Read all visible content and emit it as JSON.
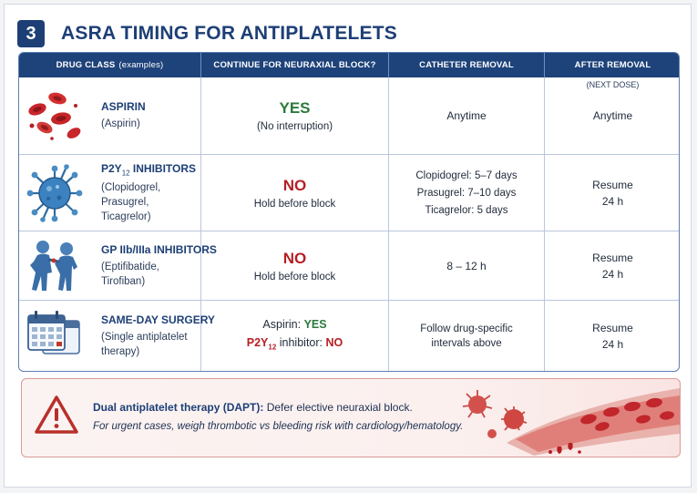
{
  "header": {
    "number": "3",
    "title": "ASRA TIMING FOR ANTIPLATELETS"
  },
  "table": {
    "columns": {
      "drug_class": "DRUG CLASS",
      "drug_class_note": "(examples)",
      "continue": "CONTINUE FOR NEURAXIAL BLOCK?",
      "catheter": "CATHETER REMOVAL",
      "after": "AFTER REMOVAL",
      "after_note": "(NEXT DOSE)"
    },
    "rows": [
      {
        "icon": "blood-cells-icon",
        "name": "ASPIRIN",
        "examples": "(Aspirin)",
        "verdict": "YES",
        "verdict_note": "(No interruption)",
        "catheter": "Anytime",
        "after": "Anytime"
      },
      {
        "icon": "platelet-icon",
        "name_prefix": "P2Y",
        "name_sub": "12",
        "name_suffix": " INHIBITORS",
        "examples": "(Clopidogrel,\nPrasugrel,\nTicagrelor)",
        "verdict": "NO",
        "verdict_note": "Hold before block",
        "catheter_lines": [
          "Clopidogrel:  5–7 days",
          "Prasugrel:  7–10 days",
          "Ticagrelor:  5 days"
        ],
        "after_l1": "Resume",
        "after_l2": "24 h"
      },
      {
        "icon": "figures-icon",
        "name": "GP IIb/IIIa INHIBITORS",
        "examples": "(Eptifibatide,\nTirofiban)",
        "verdict": "NO",
        "verdict_note": "Hold before block",
        "catheter": "8 – 12 h",
        "after_l1": "Resume",
        "after_l2": "24 h"
      },
      {
        "icon": "calendar-icon",
        "name": "SAME-DAY SURGERY",
        "examples": "(Single antiplatelet\ntherapy)",
        "line1_label": "Aspirin:",
        "line1_value": "YES",
        "line2_prefix": "P2Y",
        "line2_sub": "12",
        "line2_label": " inhibitor:",
        "line2_value": "NO",
        "catheter_l1": "Follow drug-specific",
        "catheter_l2": "intervals above",
        "after_l1": "Resume",
        "after_l2": "24 h"
      }
    ]
  },
  "footer": {
    "icon": "warning-icon",
    "line1_strong": "Dual antiplatelet therapy (DAPT):",
    "line1_rest": " Defer elective neuraxial block.",
    "line2": "For urgent cases, weigh thrombotic vs bleeding risk with cardiology/hematology.",
    "art": "blood-vessel-illustration"
  },
  "colors": {
    "navy": "#1d3f76",
    "yes": "#2b7a3b",
    "no": "#b31f24",
    "warning": "#b8302a"
  }
}
